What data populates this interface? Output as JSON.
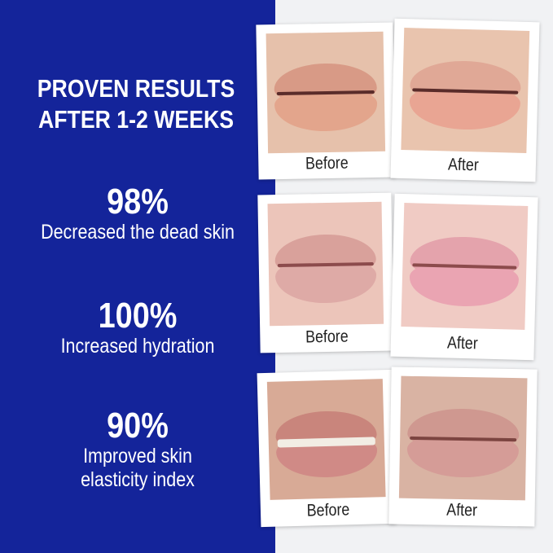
{
  "headline": [
    "PROVEN RESULTS",
    "AFTER 1-2 WEEKS"
  ],
  "stats": [
    {
      "value": "98%",
      "label": [
        "Decreased the dead skin"
      ]
    },
    {
      "value": "100%",
      "label": [
        "Increased hydration"
      ]
    },
    {
      "value": "90%",
      "label": [
        "Improved skin",
        "elasticity index"
      ]
    }
  ],
  "photos": {
    "before_label": "Before",
    "after_label": "After"
  },
  "colors": {
    "panel": "#14249a",
    "background": "#f1f2f4"
  }
}
